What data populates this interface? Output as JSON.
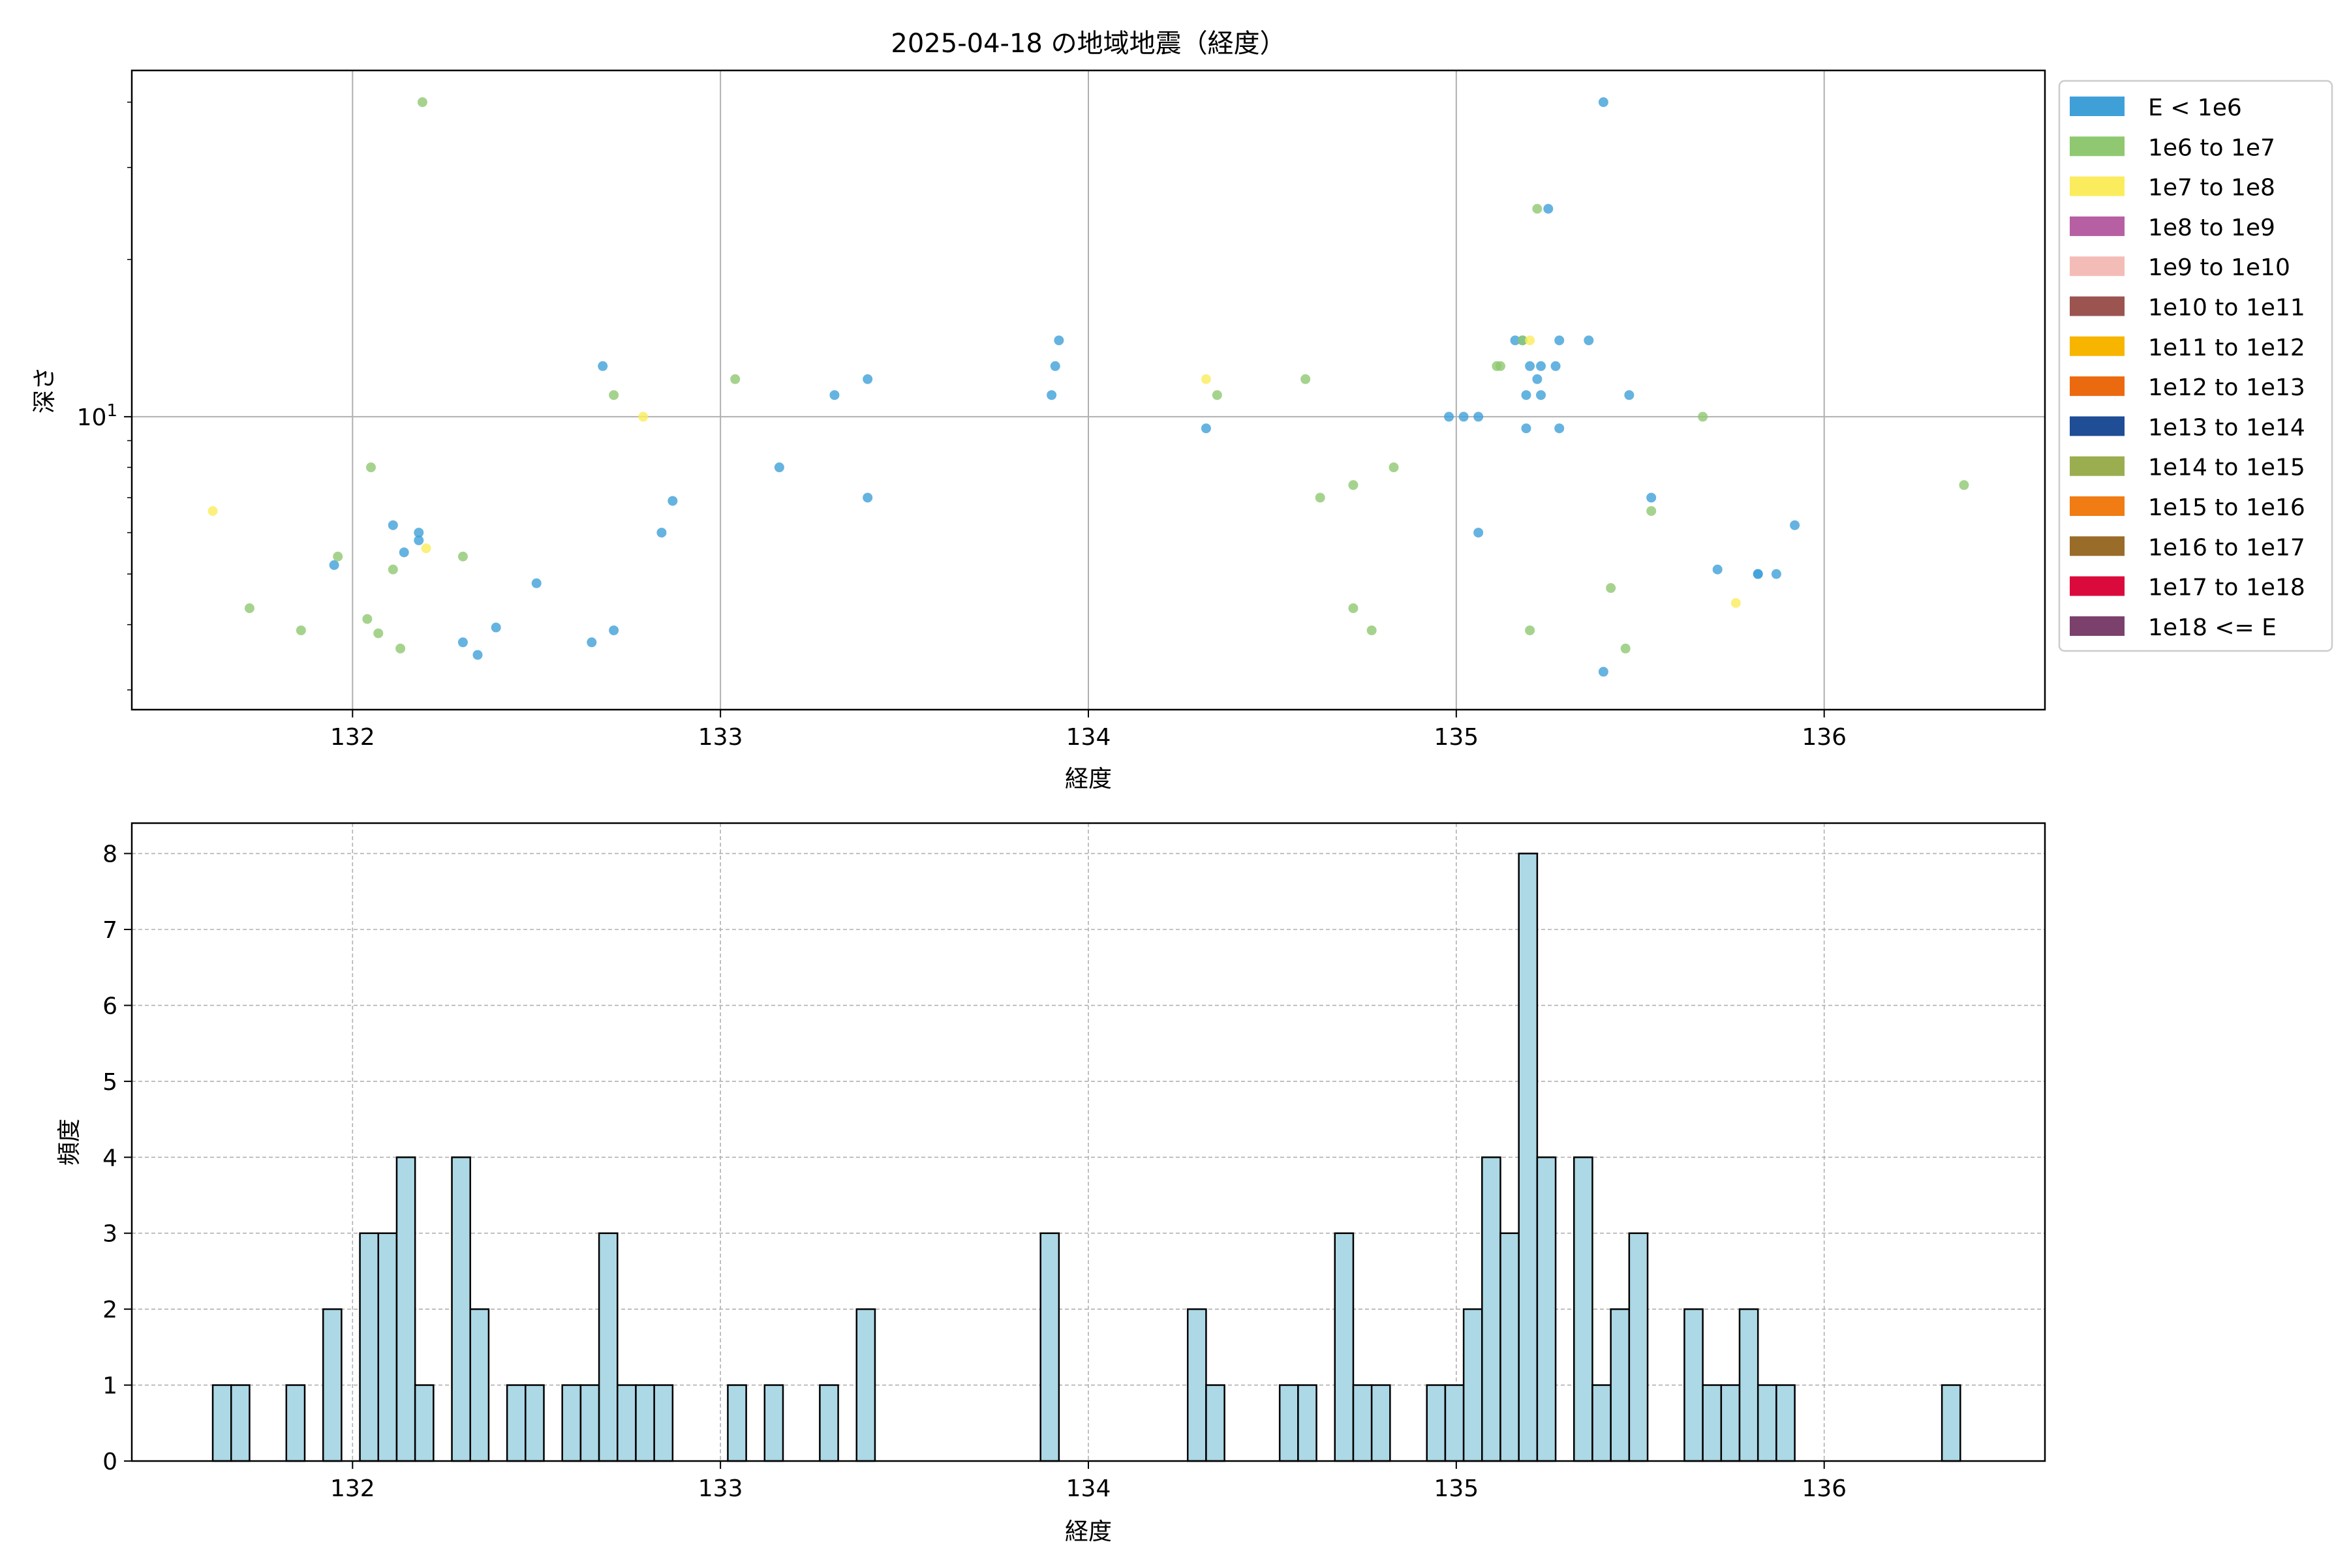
{
  "chart_data": [
    {
      "type": "scatter",
      "title": "2025-04-18 の地域地震（経度）",
      "xlabel": "経度",
      "ylabel": "深さ",
      "xlim": [
        131.4,
        136.6
      ],
      "ylim": [
        2.75,
        46
      ],
      "yscale": "log",
      "xticks": [
        132,
        133,
        134,
        135,
        136
      ],
      "xtick_labels": [
        "132",
        "133",
        "134",
        "135",
        "136"
      ],
      "ytick_major": [
        10
      ],
      "ytick_major_label": "10",
      "ytick_major_label_exp": "1",
      "grid": true,
      "legend_position": "outside-right",
      "legend": [
        {
          "label": "E < 1e6",
          "color": "#3fa0d8"
        },
        {
          "label": "1e6 to 1e7",
          "color": "#8fc870"
        },
        {
          "label": "1e7 to 1e8",
          "color": "#fbec5d"
        },
        {
          "label": "1e8 to 1e9",
          "color": "#b660a3"
        },
        {
          "label": "1e9 to 1e10",
          "color": "#f4bcb7"
        },
        {
          "label": "1e10 to 1e11",
          "color": "#9b5450"
        },
        {
          "label": "1e11 to 1e12",
          "color": "#f7b500"
        },
        {
          "label": "1e12 to 1e13",
          "color": "#ec6a0f"
        },
        {
          "label": "1e13 to 1e14",
          "color": "#1f4d96"
        },
        {
          "label": "1e14 to 1e15",
          "color": "#9aae50"
        },
        {
          "label": "1e15 to 1e16",
          "color": "#f07c13"
        },
        {
          "label": "1e16 to 1e17",
          "color": "#9a6c2a"
        },
        {
          "label": "1e17 to 1e18",
          "color": "#db0a3c"
        },
        {
          "label": "1e18 <= E",
          "color": "#7b406c"
        }
      ],
      "series": [
        {
          "name": "E < 1e6",
          "points": [
            [
              131.95,
              5.2
            ],
            [
              132.11,
              6.2
            ],
            [
              132.14,
              5.5
            ],
            [
              132.18,
              6.0
            ],
            [
              132.18,
              5.8
            ],
            [
              132.3,
              3.7
            ],
            [
              132.34,
              3.5
            ],
            [
              132.39,
              3.95
            ],
            [
              132.5,
              4.8
            ],
            [
              132.65,
              3.7
            ],
            [
              132.68,
              12.5
            ],
            [
              132.71,
              3.9
            ],
            [
              132.84,
              6.0
            ],
            [
              132.87,
              6.9
            ],
            [
              133.16,
              8.0
            ],
            [
              133.31,
              11.0
            ],
            [
              133.4,
              11.8
            ],
            [
              133.4,
              7.0
            ],
            [
              133.9,
              11.0
            ],
            [
              133.91,
              12.5
            ],
            [
              133.92,
              14.0
            ],
            [
              134.32,
              9.5
            ],
            [
              134.98,
              10.0
            ],
            [
              135.02,
              10.0
            ],
            [
              135.06,
              10.0
            ],
            [
              135.06,
              6.0
            ],
            [
              135.16,
              14.0
            ],
            [
              135.18,
              14.0
            ],
            [
              135.19,
              9.5
            ],
            [
              135.19,
              11.0
            ],
            [
              135.2,
              12.5
            ],
            [
              135.22,
              11.8
            ],
            [
              135.23,
              11.0
            ],
            [
              135.23,
              12.5
            ],
            [
              135.25,
              25.0
            ],
            [
              135.27,
              12.5
            ],
            [
              135.28,
              14.0
            ],
            [
              135.28,
              9.5
            ],
            [
              135.36,
              14.0
            ],
            [
              135.4,
              40.0
            ],
            [
              135.4,
              3.25
            ],
            [
              135.47,
              11.0
            ],
            [
              135.53,
              7.0
            ],
            [
              135.71,
              5.1
            ],
            [
              135.82,
              5.0
            ],
            [
              135.82,
              5.0
            ],
            [
              135.87,
              5.0
            ],
            [
              135.92,
              6.2
            ]
          ]
        },
        {
          "name": "1e6 to 1e7",
          "points": [
            [
              131.72,
              4.3
            ],
            [
              131.86,
              3.9
            ],
            [
              131.96,
              5.4
            ],
            [
              132.04,
              4.1
            ],
            [
              132.05,
              8.0
            ],
            [
              132.07,
              3.85
            ],
            [
              132.11,
              5.1
            ],
            [
              132.13,
              3.6
            ],
            [
              132.19,
              40.0
            ],
            [
              132.3,
              5.4
            ],
            [
              132.71,
              11.0
            ],
            [
              133.04,
              11.8
            ],
            [
              134.35,
              11.0
            ],
            [
              134.59,
              11.8
            ],
            [
              134.63,
              7.0
            ],
            [
              134.72,
              7.4
            ],
            [
              134.72,
              4.3
            ],
            [
              134.77,
              3.9
            ],
            [
              134.83,
              8.0
            ],
            [
              135.11,
              12.5
            ],
            [
              135.12,
              12.5
            ],
            [
              135.18,
              14.0
            ],
            [
              135.2,
              3.9
            ],
            [
              135.22,
              25.0
            ],
            [
              135.42,
              4.7
            ],
            [
              135.46,
              3.6
            ],
            [
              135.53,
              6.6
            ],
            [
              135.67,
              10.0
            ],
            [
              136.38,
              7.4
            ]
          ]
        },
        {
          "name": "1e7 to 1e8",
          "points": [
            [
              131.62,
              6.6
            ],
            [
              132.2,
              5.6
            ],
            [
              132.79,
              10.0
            ],
            [
              134.32,
              11.8
            ],
            [
              135.2,
              14.0
            ],
            [
              135.76,
              4.4
            ]
          ]
        }
      ]
    },
    {
      "type": "bar",
      "xlabel": "経度",
      "ylabel": "頻度",
      "xlim": [
        131.4,
        136.6
      ],
      "ylim": [
        0,
        8.4
      ],
      "xticks": [
        132,
        133,
        134,
        135,
        136
      ],
      "xtick_labels": [
        "132",
        "133",
        "134",
        "135",
        "136"
      ],
      "yticks": [
        0,
        1,
        2,
        3,
        4,
        5,
        6,
        7,
        8
      ],
      "grid": true,
      "bar_color": "#add8e6",
      "bins": [
        {
          "x0": 131.62,
          "x1": 131.67,
          "count": 1
        },
        {
          "x0": 131.67,
          "x1": 131.72,
          "count": 1
        },
        {
          "x0": 131.82,
          "x1": 131.87,
          "count": 1
        },
        {
          "x0": 131.92,
          "x1": 131.97,
          "count": 2
        },
        {
          "x0": 132.02,
          "x1": 132.07,
          "count": 3
        },
        {
          "x0": 132.07,
          "x1": 132.12,
          "count": 3
        },
        {
          "x0": 132.12,
          "x1": 132.17,
          "count": 4
        },
        {
          "x0": 132.17,
          "x1": 132.22,
          "count": 1
        },
        {
          "x0": 132.27,
          "x1": 132.32,
          "count": 4
        },
        {
          "x0": 132.32,
          "x1": 132.37,
          "count": 2
        },
        {
          "x0": 132.42,
          "x1": 132.47,
          "count": 1
        },
        {
          "x0": 132.47,
          "x1": 132.52,
          "count": 1
        },
        {
          "x0": 132.57,
          "x1": 132.62,
          "count": 1
        },
        {
          "x0": 132.62,
          "x1": 132.67,
          "count": 1
        },
        {
          "x0": 132.67,
          "x1": 132.72,
          "count": 3
        },
        {
          "x0": 132.72,
          "x1": 132.77,
          "count": 1
        },
        {
          "x0": 132.77,
          "x1": 132.82,
          "count": 1
        },
        {
          "x0": 132.82,
          "x1": 132.87,
          "count": 1
        },
        {
          "x0": 133.02,
          "x1": 133.07,
          "count": 1
        },
        {
          "x0": 133.12,
          "x1": 133.17,
          "count": 1
        },
        {
          "x0": 133.27,
          "x1": 133.32,
          "count": 1
        },
        {
          "x0": 133.37,
          "x1": 133.42,
          "count": 2
        },
        {
          "x0": 133.87,
          "x1": 133.92,
          "count": 3
        },
        {
          "x0": 134.27,
          "x1": 134.32,
          "count": 2
        },
        {
          "x0": 134.32,
          "x1": 134.37,
          "count": 1
        },
        {
          "x0": 134.52,
          "x1": 134.57,
          "count": 1
        },
        {
          "x0": 134.57,
          "x1": 134.62,
          "count": 1
        },
        {
          "x0": 134.67,
          "x1": 134.72,
          "count": 3
        },
        {
          "x0": 134.72,
          "x1": 134.77,
          "count": 1
        },
        {
          "x0": 134.77,
          "x1": 134.82,
          "count": 1
        },
        {
          "x0": 134.92,
          "x1": 134.97,
          "count": 1
        },
        {
          "x0": 134.97,
          "x1": 135.02,
          "count": 1
        },
        {
          "x0": 135.02,
          "x1": 135.07,
          "count": 2
        },
        {
          "x0": 135.07,
          "x1": 135.12,
          "count": 4
        },
        {
          "x0": 135.12,
          "x1": 135.17,
          "count": 3
        },
        {
          "x0": 135.17,
          "x1": 135.22,
          "count": 8
        },
        {
          "x0": 135.22,
          "x1": 135.27,
          "count": 4
        },
        {
          "x0": 135.32,
          "x1": 135.37,
          "count": 4
        },
        {
          "x0": 135.37,
          "x1": 135.42,
          "count": 1
        },
        {
          "x0": 135.42,
          "x1": 135.47,
          "count": 2
        },
        {
          "x0": 135.47,
          "x1": 135.52,
          "count": 3
        },
        {
          "x0": 135.62,
          "x1": 135.67,
          "count": 2
        },
        {
          "x0": 135.67,
          "x1": 135.72,
          "count": 1
        },
        {
          "x0": 135.72,
          "x1": 135.77,
          "count": 1
        },
        {
          "x0": 135.77,
          "x1": 135.82,
          "count": 2
        },
        {
          "x0": 135.82,
          "x1": 135.87,
          "count": 1
        },
        {
          "x0": 135.87,
          "x1": 135.92,
          "count": 1
        },
        {
          "x0": 136.32,
          "x1": 136.37,
          "count": 1
        }
      ]
    }
  ]
}
